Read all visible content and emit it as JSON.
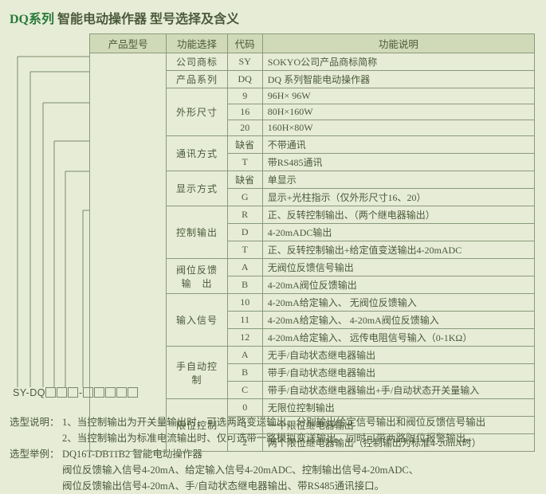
{
  "title": {
    "prefix": "DQ系列",
    "rest": " 智能电动操作器 型号选择及含义"
  },
  "headers": {
    "col1": "产品型号",
    "col2": "功能选择",
    "col3": "代码",
    "col4": "功能说明"
  },
  "codeString": {
    "prefix": "SY-DQ",
    "sep": "-"
  },
  "groups": [
    {
      "cat": "公司商标",
      "rows": [
        {
          "code": "SY",
          "desc": "SOKYO公司产品商标简称"
        }
      ]
    },
    {
      "cat": "产品系列",
      "rows": [
        {
          "code": "DQ",
          "desc": "DQ 系列智能电动操作器"
        }
      ]
    },
    {
      "cat": "外形尺寸",
      "rows": [
        {
          "code": "9",
          "desc": "96H× 96W"
        },
        {
          "code": "16",
          "desc": "80H×160W"
        },
        {
          "code": "20",
          "desc": "160H×80W"
        }
      ]
    },
    {
      "cat": "通讯方式",
      "rows": [
        {
          "code": "缺省",
          "desc": "不带通讯"
        },
        {
          "code": "T",
          "desc": "带RS485通讯"
        }
      ]
    },
    {
      "cat": "显示方式",
      "rows": [
        {
          "code": "缺省",
          "desc": "单显示"
        },
        {
          "code": "G",
          "desc": "显示+光柱指示（仅外形尺寸16、20）"
        }
      ]
    },
    {
      "cat": "控制输出",
      "rows": [
        {
          "code": "R",
          "desc": "正、反转控制输出、（两个继电器输出）"
        },
        {
          "code": "D",
          "desc": "4-20mADC输出"
        },
        {
          "code": "T",
          "desc": "正、反转控制输出+给定值变送输出4-20mADC"
        }
      ]
    },
    {
      "cat": "阀位反馈\n输　出",
      "rows": [
        {
          "code": "A",
          "desc": "无阀位反馈信号输出"
        },
        {
          "code": "B",
          "desc": "4-20mA阀位反馈输出"
        }
      ]
    },
    {
      "cat": "输入信号",
      "rows": [
        {
          "code": "10",
          "desc": "4-20mA给定输入、 无阀位反馈输入"
        },
        {
          "code": "11",
          "desc": "4-20mA给定输入、 4-20mA阀位反馈输入"
        },
        {
          "code": "12",
          "desc": "4-20mA给定输入、 远传电阻信号输入（0-1KΩ）"
        }
      ]
    },
    {
      "cat": "手自动控制",
      "rows": [
        {
          "code": "A",
          "desc": "无手/自动状态继电器输出"
        },
        {
          "code": "B",
          "desc": "带手/自动状态继电器输出"
        },
        {
          "code": "C",
          "desc": "带手/自动状态继电器输出+手/自动状态开关量输入"
        }
      ]
    },
    {
      "cat": "限位控制",
      "rows": [
        {
          "code": "0",
          "desc": "无限位控制输出"
        },
        {
          "code": "1",
          "desc": "一个限位继电器输出"
        },
        {
          "code": "2",
          "desc": "两个限位继电器输出（控制输出为标准4-20mA时）"
        }
      ]
    }
  ],
  "footer": {
    "l1_lbl": "选型说明：",
    "l1": "1、当控制输出为开关量输出时、可选两路变送输出、分别输出给定信号输出和阀位反馈信号输出",
    "l2": "2、当控制输出为标准电流输出时、仅可选带一路模拟变送输出、同时可带两路限位报警输出。",
    "l3_lbl": "选型举例：",
    "l3": "DQ16T-DB11B2 智能电动操作器",
    "l4": "阀位反馈输入信号4-20mA、给定输入信号4-20mADC、控制输出信号4-20mADC、",
    "l5": "阀位反馈输出信号4-20mA、手/自动状态继电器输出、带RS485通讯接口。"
  },
  "style": {
    "bg": "#e7ecd6",
    "border": "#8a9a7a",
    "headerBg": "#d0dab8",
    "text": "#4a5a3a",
    "titleGreen": "#2a7a3a"
  }
}
